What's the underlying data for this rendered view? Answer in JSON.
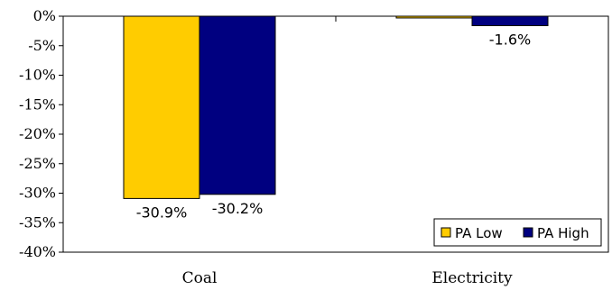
{
  "chart_data": {
    "type": "bar",
    "categories": [
      "Coal",
      "Electricity"
    ],
    "series": [
      {
        "name": "PA Low",
        "values": [
          -30.9,
          -0.3
        ],
        "color": "#FFCC00"
      },
      {
        "name": "PA High",
        "values": [
          -30.2,
          -1.6
        ],
        "color": "#000080"
      }
    ],
    "data_labels": [
      [
        "-30.9%",
        ""
      ],
      [
        "-30.2%",
        "-1.6%"
      ]
    ],
    "y_ticks": [
      "0%",
      "-5%",
      "-10%",
      "-15%",
      "-20%",
      "-25%",
      "-30%",
      "-35%",
      "-40%"
    ],
    "ylim": [
      -40,
      0
    ],
    "grid": false,
    "legend_position": "bottom-right",
    "title": "",
    "xlabel": "",
    "ylabel": ""
  }
}
